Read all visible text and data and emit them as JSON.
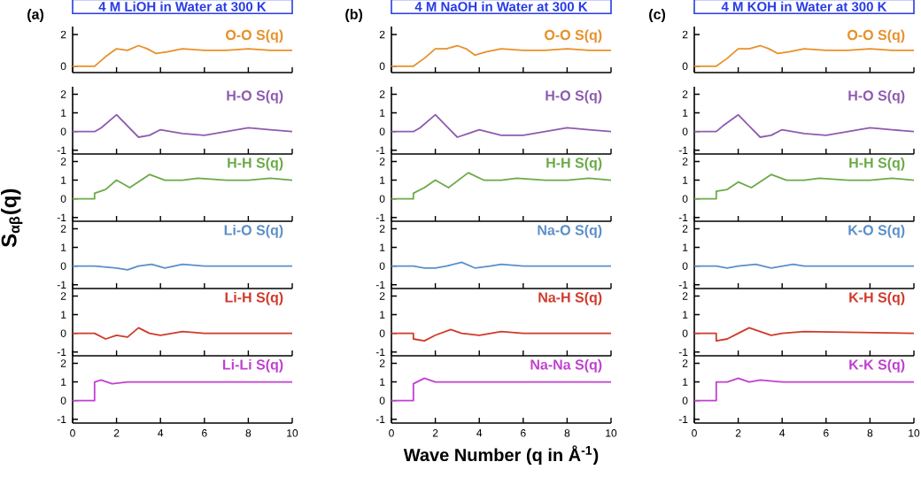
{
  "chart_data": [
    {
      "type": "line",
      "title": "4 M LiOH in Water at 300 K",
      "annotations": [
        "(a)"
      ],
      "x": [
        0,
        1,
        1.5,
        2,
        2.5,
        3,
        3.4,
        3.8,
        4.3,
        5,
        6,
        7,
        8,
        9,
        10
      ],
      "series": [
        {
          "name": "O-O S(q)",
          "color": "#e8902a",
          "values": [
            0,
            0,
            0.6,
            1.1,
            1.0,
            1.3,
            1.1,
            0.8,
            0.9,
            1.1,
            1.0,
            1.0,
            1.1,
            1.0,
            1.0
          ]
        }
      ],
      "xlim": [
        0,
        10
      ],
      "xticks": [
        0,
        2,
        4,
        6,
        8,
        10
      ],
      "ylim": [
        -0.4,
        2.5
      ],
      "yticks": [
        0,
        2
      ],
      "tick_labels": "y"
    },
    {
      "type": "line",
      "x": [
        0,
        1,
        1.3,
        2,
        2.5,
        3,
        3.5,
        4,
        5,
        6,
        7,
        8,
        9,
        10
      ],
      "series": [
        {
          "name": "H-O S(q)",
          "color": "#8e5bb0",
          "values": [
            0,
            0,
            0.2,
            0.9,
            0.3,
            -0.3,
            -0.2,
            0.1,
            -0.1,
            -0.2,
            0,
            0.2,
            0.1,
            0
          ]
        }
      ],
      "xlim": [
        0,
        10
      ],
      "xticks": [
        0,
        2,
        4,
        6,
        8,
        10
      ],
      "ylim": [
        -1.2,
        2.4
      ],
      "yticks": [
        -1,
        0,
        1,
        2
      ],
      "tick_labels": "y"
    },
    {
      "type": "line",
      "x": [
        0,
        1,
        1,
        1.5,
        2,
        2.6,
        3.5,
        4.2,
        5,
        5.7,
        7,
        8,
        9,
        10
      ],
      "series": [
        {
          "name": "H-H S(q)",
          "color": "#6aaa48",
          "values": [
            0,
            0,
            0.3,
            0.5,
            1.0,
            0.6,
            1.3,
            1.0,
            1.0,
            1.1,
            1.0,
            1.0,
            1.1,
            1.0
          ]
        }
      ],
      "xlim": [
        0,
        10
      ],
      "xticks": [
        0,
        2,
        4,
        6,
        8,
        10
      ],
      "ylim": [
        -1.2,
        2.4
      ],
      "yticks": [
        -1,
        0,
        1,
        2
      ],
      "tick_labels": "y"
    },
    {
      "type": "line",
      "ylabel": "S$_{αβ}$(q)",
      "x": [
        0,
        1,
        2,
        2.5,
        3,
        3.6,
        4.2,
        5,
        6,
        10
      ],
      "series": [
        {
          "name": "Li-O S(q)",
          "color": "#5b8fc8",
          "values": [
            0,
            0,
            -0.1,
            -0.2,
            0,
            0.1,
            -0.1,
            0.1,
            0,
            0
          ]
        }
      ],
      "xlim": [
        0,
        10
      ],
      "xticks": [
        0,
        2,
        4,
        6,
        8,
        10
      ],
      "ylim": [
        -1.2,
        2.4
      ],
      "yticks": [
        -1,
        0,
        1,
        2
      ],
      "tick_labels": "y"
    },
    {
      "type": "line",
      "x": [
        0,
        1,
        1.5,
        2,
        2.5,
        3,
        3.5,
        4,
        5,
        6,
        10
      ],
      "series": [
        {
          "name": "Li-H S(q)",
          "color": "#d03a2a",
          "values": [
            0,
            0,
            -0.3,
            -0.1,
            -0.2,
            0.3,
            0,
            -0.1,
            0.1,
            0,
            0
          ]
        }
      ],
      "xlim": [
        0,
        10
      ],
      "xticks": [
        0,
        2,
        4,
        6,
        8,
        10
      ],
      "ylim": [
        -1.2,
        2.4
      ],
      "yticks": [
        -1,
        0,
        1,
        2
      ],
      "tick_labels": "y"
    },
    {
      "type": "line",
      "x": [
        0,
        1,
        1,
        1.3,
        1.8,
        2.5,
        3,
        4,
        10
      ],
      "series": [
        {
          "name": "Li-Li S(q)",
          "color": "#c040d0",
          "values": [
            0,
            0,
            1.0,
            1.1,
            0.9,
            1.0,
            1.0,
            1.0,
            1.0
          ]
        }
      ],
      "xlim": [
        0,
        10
      ],
      "xticks": [
        0,
        2,
        4,
        6,
        8,
        10
      ],
      "ylim": [
        -1.2,
        2.4
      ],
      "yticks": [
        -1,
        0,
        1,
        2
      ]
    },
    {
      "type": "line",
      "title": "4 M NaOH in Water at 300 K",
      "annotations": [
        "(b)"
      ],
      "x": [
        0,
        1,
        1.5,
        2,
        2.5,
        3,
        3.4,
        3.8,
        4.3,
        5,
        6,
        7,
        8,
        9,
        10
      ],
      "series": [
        {
          "name": "O-O S(q)",
          "color": "#e8902a",
          "values": [
            0,
            0,
            0.5,
            1.1,
            1.1,
            1.3,
            1.1,
            0.7,
            0.9,
            1.1,
            1.0,
            1.0,
            1.1,
            1.0,
            1.0
          ]
        }
      ],
      "xlim": [
        0,
        10
      ],
      "xticks": [
        0,
        2,
        4,
        6,
        8,
        10
      ],
      "ylim": [
        -0.4,
        2.5
      ],
      "yticks": [
        0,
        2
      ],
      "tick_labels": "y"
    },
    {
      "type": "line",
      "x": [
        0,
        1,
        1.3,
        2,
        2.5,
        3,
        3.5,
        4,
        5,
        6,
        7,
        8,
        9,
        10
      ],
      "series": [
        {
          "name": "H-O S(q)",
          "color": "#8e5bb0",
          "values": [
            0,
            0,
            0.2,
            0.9,
            0.3,
            -0.3,
            -0.1,
            0.1,
            -0.2,
            -0.2,
            0,
            0.2,
            0.1,
            0
          ]
        }
      ],
      "xlim": [
        0,
        10
      ],
      "xticks": [
        0,
        2,
        4,
        6,
        8,
        10
      ],
      "ylim": [
        -1.2,
        2.4
      ],
      "yticks": [
        -1,
        0,
        1,
        2
      ],
      "tick_labels": "y"
    },
    {
      "type": "line",
      "x": [
        0,
        1,
        1,
        1.5,
        2,
        2.6,
        3.5,
        4.2,
        5,
        5.7,
        7,
        8,
        9,
        10
      ],
      "series": [
        {
          "name": "H-H S(q)",
          "color": "#6aaa48",
          "values": [
            0,
            0,
            0.3,
            0.6,
            1.0,
            0.6,
            1.4,
            1.0,
            1.0,
            1.1,
            1.0,
            1.0,
            1.1,
            1.0
          ]
        }
      ],
      "xlim": [
        0,
        10
      ],
      "xticks": [
        0,
        2,
        4,
        6,
        8,
        10
      ],
      "ylim": [
        -1.2,
        2.4
      ],
      "yticks": [
        -1,
        0,
        1,
        2
      ],
      "tick_labels": "y"
    },
    {
      "type": "line",
      "x": [
        0,
        1,
        1.5,
        2,
        2.5,
        3.2,
        3.8,
        4.5,
        5,
        6,
        10
      ],
      "series": [
        {
          "name": "Na-O S(q)",
          "color": "#5b8fc8",
          "values": [
            0,
            0,
            -0.1,
            -0.1,
            0,
            0.2,
            -0.1,
            0,
            0.1,
            0,
            0
          ]
        }
      ],
      "xlim": [
        0,
        10
      ],
      "xticks": [
        0,
        2,
        4,
        6,
        8,
        10
      ],
      "ylim": [
        -1.2,
        2.4
      ],
      "yticks": [
        -1,
        0,
        1,
        2
      ],
      "tick_labels": "y"
    },
    {
      "type": "line",
      "x": [
        0,
        1,
        1,
        1.5,
        2,
        2.7,
        3.2,
        4,
        5,
        6,
        10
      ],
      "series": [
        {
          "name": "Na-H S(q)",
          "color": "#d03a2a",
          "values": [
            0,
            0,
            -0.3,
            -0.4,
            -0.1,
            0.2,
            0,
            -0.1,
            0.1,
            0,
            0
          ]
        }
      ],
      "xlim": [
        0,
        10
      ],
      "xticks": [
        0,
        2,
        4,
        6,
        8,
        10
      ],
      "ylim": [
        -1.2,
        2.4
      ],
      "yticks": [
        -1,
        0,
        1,
        2
      ],
      "tick_labels": "y"
    },
    {
      "type": "line",
      "xlabel": "Wave Number (q in Å$^{-1}$)",
      "x": [
        0,
        1,
        1,
        1.5,
        2,
        3,
        4,
        10
      ],
      "series": [
        {
          "name": "Na-Na S(q)",
          "color": "#c040d0",
          "values": [
            0,
            0,
            0.9,
            1.2,
            1.0,
            1.0,
            1.0,
            1.0
          ]
        }
      ],
      "xlim": [
        0,
        10
      ],
      "xticks": [
        0,
        2,
        4,
        6,
        8,
        10
      ],
      "ylim": [
        -1.2,
        2.4
      ],
      "yticks": [
        -1,
        0,
        1,
        2
      ]
    },
    {
      "type": "line",
      "title": "4 M KOH in Water at 300 K",
      "annotations": [
        "(c)"
      ],
      "x": [
        0,
        1,
        1.5,
        2,
        2.5,
        3,
        3.4,
        3.8,
        4.3,
        5,
        6,
        7,
        8,
        9,
        10
      ],
      "series": [
        {
          "name": "O-O S(q)",
          "color": "#e8902a",
          "values": [
            0,
            0,
            0.5,
            1.1,
            1.1,
            1.3,
            1.1,
            0.8,
            0.9,
            1.1,
            1.0,
            1.0,
            1.1,
            1.0,
            1.0
          ]
        }
      ],
      "xlim": [
        0,
        10
      ],
      "xticks": [
        0,
        2,
        4,
        6,
        8,
        10
      ],
      "ylim": [
        -0.4,
        2.5
      ],
      "yticks": [
        0,
        2
      ],
      "tick_labels": "y"
    },
    {
      "type": "line",
      "x": [
        0,
        1,
        1.3,
        2,
        2.5,
        3,
        3.5,
        4,
        5,
        6,
        7,
        8,
        9,
        10
      ],
      "series": [
        {
          "name": "H-O S(q)",
          "color": "#8e5bb0",
          "values": [
            0,
            0,
            0.3,
            0.9,
            0.3,
            -0.3,
            -0.2,
            0.1,
            -0.1,
            -0.2,
            0,
            0.2,
            0.1,
            0
          ]
        }
      ],
      "xlim": [
        0,
        10
      ],
      "xticks": [
        0,
        2,
        4,
        6,
        8,
        10
      ],
      "ylim": [
        -1.2,
        2.4
      ],
      "yticks": [
        -1,
        0,
        1,
        2
      ],
      "tick_labels": "y"
    },
    {
      "type": "line",
      "x": [
        0,
        1,
        1,
        1.5,
        2,
        2.6,
        3.5,
        4.2,
        5,
        5.7,
        7,
        8,
        9,
        10
      ],
      "series": [
        {
          "name": "H-H S(q)",
          "color": "#6aaa48",
          "values": [
            0,
            0,
            0.4,
            0.5,
            0.9,
            0.6,
            1.3,
            1.0,
            1.0,
            1.1,
            1.0,
            1.0,
            1.1,
            1.0
          ]
        }
      ],
      "xlim": [
        0,
        10
      ],
      "xticks": [
        0,
        2,
        4,
        6,
        8,
        10
      ],
      "ylim": [
        -1.2,
        2.4
      ],
      "yticks": [
        -1,
        0,
        1,
        2
      ],
      "tick_labels": "y"
    },
    {
      "type": "line",
      "x": [
        0,
        1,
        1.5,
        2,
        2.8,
        3.5,
        4.5,
        5,
        10
      ],
      "series": [
        {
          "name": "K-O S(q)",
          "color": "#5b8fc8",
          "values": [
            0,
            0,
            -0.1,
            0,
            0.1,
            -0.1,
            0.1,
            0,
            0
          ]
        }
      ],
      "xlim": [
        0,
        10
      ],
      "xticks": [
        0,
        2,
        4,
        6,
        8,
        10
      ],
      "ylim": [
        -1.2,
        2.4
      ],
      "yticks": [
        -1,
        0,
        1,
        2
      ],
      "tick_labels": "y"
    },
    {
      "type": "line",
      "x": [
        0,
        1,
        1,
        1.5,
        2,
        2.5,
        3,
        3.5,
        4,
        5,
        10
      ],
      "series": [
        {
          "name": "K-H S(q)",
          "color": "#d03a2a",
          "values": [
            0,
            0,
            -0.4,
            -0.3,
            0,
            0.3,
            0.1,
            -0.1,
            0,
            0.1,
            0
          ]
        }
      ],
      "xlim": [
        0,
        10
      ],
      "xticks": [
        0,
        2,
        4,
        6,
        8,
        10
      ],
      "ylim": [
        -1.2,
        2.4
      ],
      "yticks": [
        -1,
        0,
        1,
        2
      ],
      "tick_labels": "y"
    },
    {
      "type": "line",
      "x": [
        0,
        1,
        1,
        1.5,
        2,
        2.5,
        3,
        4,
        10
      ],
      "series": [
        {
          "name": "K-K S(q)",
          "color": "#c040d0",
          "values": [
            0,
            0,
            1.0,
            1.0,
            1.2,
            1.0,
            1.1,
            1.0,
            1.0
          ]
        }
      ],
      "xlim": [
        0,
        10
      ],
      "xticks": [
        0,
        2,
        4,
        6,
        8,
        10
      ],
      "ylim": [
        -1.2,
        2.4
      ],
      "yticks": [
        -1,
        0,
        1,
        2
      ]
    }
  ]
}
